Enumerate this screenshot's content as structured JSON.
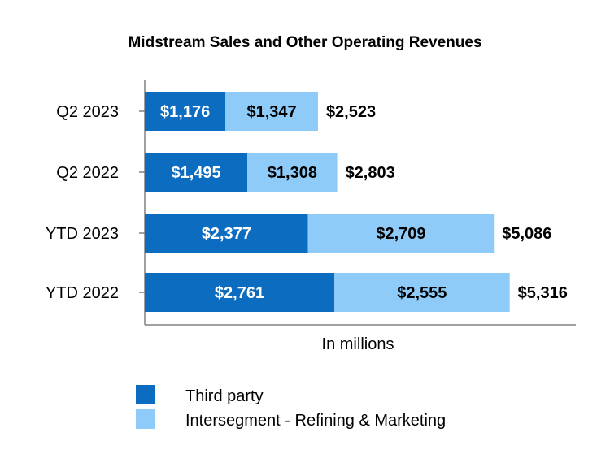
{
  "chart_data": {
    "type": "bar",
    "orientation": "horizontal",
    "stacked": true,
    "title": "Midstream Sales and Other Operating Revenues",
    "xlabel": "In millions",
    "ylabel": "",
    "categories": [
      "Q2 2023",
      "Q2 2022",
      "YTD 2023",
      "YTD 2022"
    ],
    "series": [
      {
        "name": "Third party",
        "color": "#0C6CC0",
        "label_color": "#ffffff",
        "values": [
          1176,
          1495,
          2377,
          2761
        ],
        "labels": [
          "$1,176",
          "$1,495",
          "$2,377",
          "$2,761"
        ]
      },
      {
        "name": "Intersegment - Refining & Marketing",
        "color": "#8ECBF8",
        "label_color": "#000000",
        "values": [
          1347,
          1308,
          2709,
          2555
        ],
        "labels": [
          "$1,347",
          "$1,308",
          "$2,709",
          "$2,555"
        ]
      }
    ],
    "totals": [
      2523,
      2803,
      5086,
      5316
    ],
    "total_labels": [
      "$2,523",
      "$2,803",
      "$5,086",
      "$5,316"
    ],
    "xlim": [
      0,
      6450
    ],
    "grid": false,
    "legend_position": "bottom-left"
  }
}
